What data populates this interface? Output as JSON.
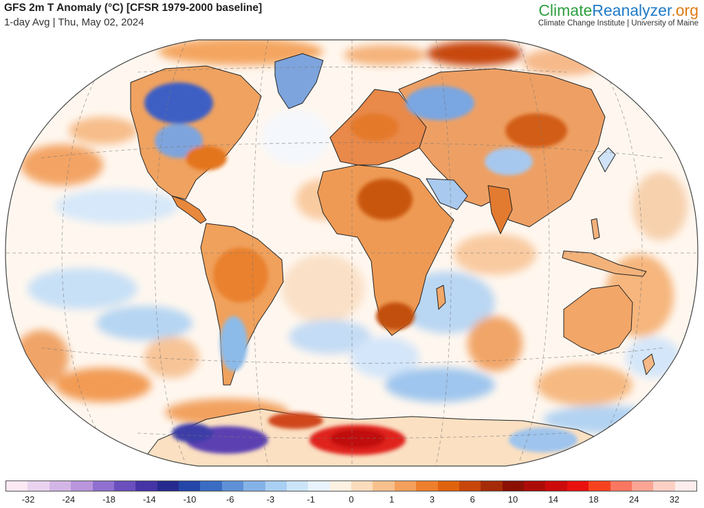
{
  "header": {
    "title": "GFS 2m T Anomaly (°C) [CFSR 1979-2000 baseline]",
    "subtitle": "1-day Avg | Thu, May 02, 2024"
  },
  "brand": {
    "part1": "Climate",
    "part2": "Reanalyzer",
    "part3": ".org",
    "tagline": "Climate Change Institute | University of Maine",
    "colors": {
      "green": "#2d9e3e",
      "blue": "#1f7ac7",
      "orange": "#e07b16"
    }
  },
  "legend": {
    "colors": [
      "#fbe8f3",
      "#e9d3ef",
      "#d4b6e6",
      "#b995dc",
      "#8f70cf",
      "#6a50bd",
      "#4434a6",
      "#262a8e",
      "#2446a8",
      "#3a6cc2",
      "#5f90d6",
      "#85b2e6",
      "#a9cff2",
      "#cbe4f8",
      "#e8f3fc",
      "#fdf1e2",
      "#fbdcbc",
      "#f8c08c",
      "#f4a05c",
      "#ee7f2c",
      "#e0620e",
      "#c8460a",
      "#a52c08",
      "#8a1004",
      "#ac0c08",
      "#cc0a0a",
      "#e8100e",
      "#f7421e",
      "#fb7660",
      "#fca595",
      "#fdd0c6",
      "#fdecec"
    ],
    "ticks": [
      "-32",
      "-24",
      "-18",
      "-14",
      "-10",
      "-6",
      "-3",
      "-1",
      "0",
      "1",
      "3",
      "6",
      "10",
      "14",
      "18",
      "24",
      "32"
    ]
  },
  "map": {
    "projection": "Winkel Tripel-style global view",
    "palette": {
      "ocean_neutral": "#fff8f1",
      "warm_light": "#f9c79a",
      "warm": "#ee8a3c",
      "warm_strong": "#c84a0c",
      "hot": "#e0201a",
      "cool_light": "#cfe4f8",
      "cool": "#8cbbe9",
      "cool_strong": "#3d5fc4",
      "cold": "#5b3fb2"
    }
  }
}
